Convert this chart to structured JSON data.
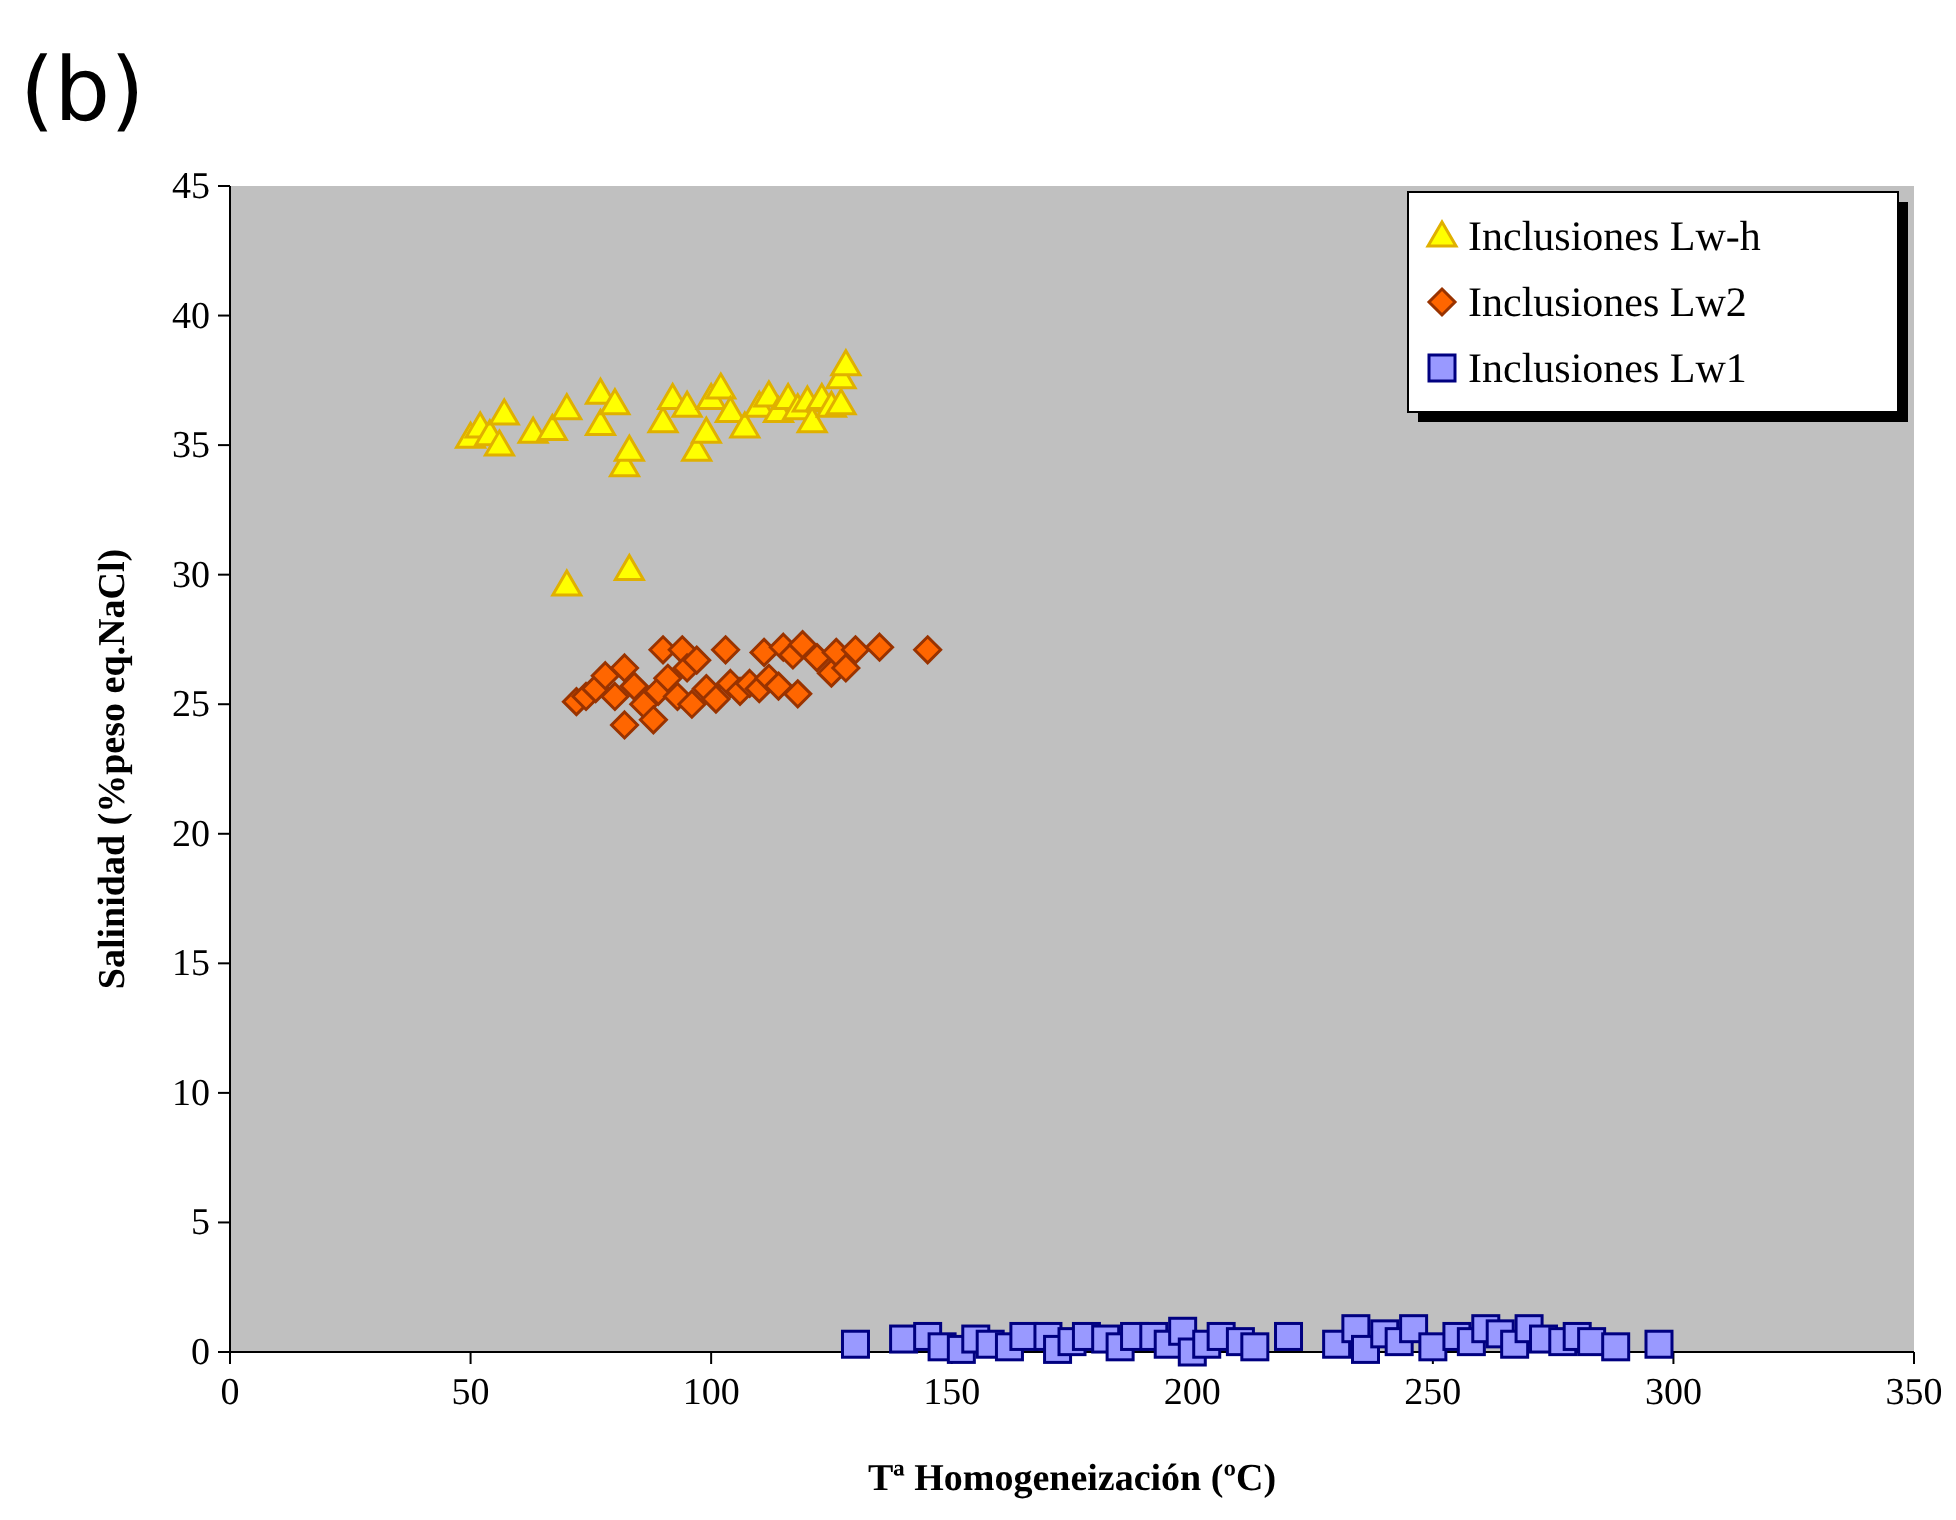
{
  "chart_data": {
    "type": "scatter",
    "title": "(b)",
    "xlabel": "Tª Homogeneización (ºC)",
    "ylabel": "Salinidad (%peso eq.NaCl)",
    "xlim": [
      0,
      350
    ],
    "ylim": [
      0,
      45
    ],
    "xticks": [
      0,
      50,
      100,
      150,
      200,
      250,
      300,
      350
    ],
    "yticks": [
      0,
      5,
      10,
      15,
      20,
      25,
      30,
      35,
      40,
      45
    ],
    "grid": false,
    "legend": "top right",
    "series": [
      {
        "name": "Inclusiones Lw-h",
        "color": "#ffff00",
        "marker": "triangle",
        "x": [
          50,
          52,
          54,
          56,
          57,
          63,
          67,
          70,
          70,
          77,
          77,
          80,
          82,
          83,
          83,
          90,
          92,
          95,
          97,
          99,
          100,
          102,
          104,
          107,
          110,
          112,
          114,
          116,
          118,
          120,
          121,
          123,
          125,
          127,
          128,
          127
        ],
        "values": [
          35.3,
          35.7,
          35.4,
          35.0,
          36.2,
          35.5,
          35.6,
          36.4,
          29.6,
          35.8,
          37.0,
          36.6,
          34.2,
          34.8,
          30.2,
          35.9,
          36.8,
          36.5,
          34.8,
          35.5,
          36.8,
          37.2,
          36.3,
          35.7,
          36.5,
          36.9,
          36.3,
          36.8,
          36.4,
          36.7,
          35.9,
          36.8,
          36.5,
          37.6,
          38.1,
          36.6
        ]
      },
      {
        "name": "Inclusiones Lw2",
        "color": "#ff6600",
        "marker": "diamond",
        "x": [
          72,
          74,
          76,
          78,
          80,
          82,
          82,
          84,
          86,
          88,
          89,
          90,
          91,
          93,
          94,
          95,
          97,
          96,
          99,
          101,
          103,
          104,
          106,
          108,
          110,
          111,
          112,
          114,
          115,
          117,
          118,
          119,
          122,
          125,
          126,
          128,
          130,
          135,
          145
        ],
        "values": [
          25.1,
          25.3,
          25.6,
          26.1,
          25.3,
          24.2,
          26.4,
          25.7,
          25.0,
          24.4,
          25.5,
          27.1,
          26.0,
          25.3,
          27.1,
          26.4,
          26.7,
          25.0,
          25.6,
          25.2,
          27.1,
          25.8,
          25.5,
          25.8,
          25.6,
          27.0,
          26.0,
          25.7,
          27.2,
          26.9,
          25.4,
          27.3,
          26.8,
          26.2,
          27.0,
          26.4,
          27.1,
          27.2,
          27.1
        ]
      },
      {
        "name": "Inclusiones Lw1",
        "color": "#9999ff",
        "marker": "square",
        "x": [
          130,
          140,
          145,
          148,
          152,
          155,
          158,
          162,
          165,
          170,
          172,
          175,
          178,
          182,
          185,
          188,
          192,
          195,
          198,
          200,
          203,
          206,
          210,
          213,
          220,
          230,
          234,
          236,
          240,
          243,
          246,
          250,
          255,
          258,
          261,
          264,
          267,
          270,
          273,
          277,
          280,
          283,
          288,
          297
        ],
        "values": [
          0.3,
          0.5,
          0.6,
          0.2,
          0.1,
          0.5,
          0.3,
          0.2,
          0.6,
          0.6,
          0.1,
          0.4,
          0.6,
          0.5,
          0.2,
          0.6,
          0.6,
          0.3,
          0.8,
          0,
          0.3,
          0.6,
          0.4,
          0.2,
          0.6,
          0.3,
          0.9,
          0.1,
          0.7,
          0.4,
          0.9,
          0.2,
          0.6,
          0.4,
          0.9,
          0.7,
          0.3,
          0.9,
          0.5,
          0.4,
          0.6,
          0.4,
          0.2,
          0.3
        ]
      }
    ]
  }
}
